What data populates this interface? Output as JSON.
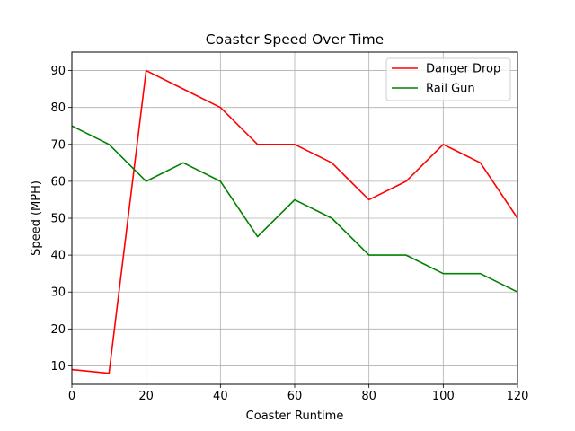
{
  "chart_data": {
    "type": "line",
    "title": "Coaster Speed Over Time",
    "xlabel": "Coaster Runtime",
    "ylabel": "Speed (MPH)",
    "xlim": [
      0,
      120
    ],
    "ylim": [
      5,
      95
    ],
    "xticks": [
      0,
      20,
      40,
      60,
      80,
      100,
      120
    ],
    "yticks": [
      10,
      20,
      30,
      40,
      50,
      60,
      70,
      80,
      90
    ],
    "grid": true,
    "legend_position": "top-right",
    "x": [
      0,
      10,
      20,
      30,
      40,
      50,
      60,
      70,
      80,
      90,
      100,
      110,
      120
    ],
    "series": [
      {
        "name": "Danger Drop",
        "color": "#ff0000",
        "values": [
          9,
          8,
          90,
          85,
          80,
          70,
          70,
          65,
          55,
          60,
          70,
          65,
          50
        ]
      },
      {
        "name": "Rail Gun",
        "color": "#008000",
        "values": [
          75,
          70,
          60,
          65,
          60,
          45,
          55,
          50,
          40,
          40,
          35,
          35,
          30
        ]
      }
    ]
  }
}
